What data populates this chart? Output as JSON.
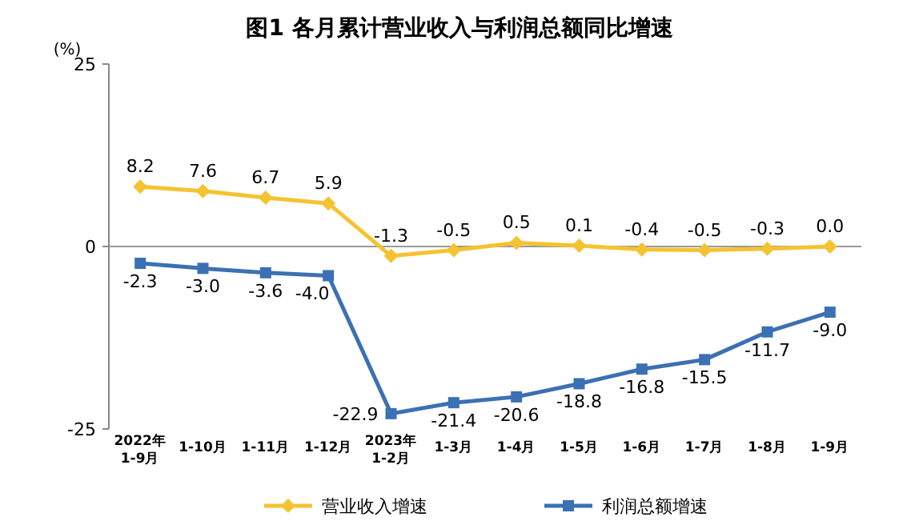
{
  "chart_data": {
    "type": "line",
    "title": "图1  各月累计营业收入与利润总额同比增速",
    "ylabel": "(%)",
    "categories": [
      "2022年\n1-9月",
      "1-10月",
      "1-11月",
      "1-12月",
      "2023年\n1-2月",
      "1-3月",
      "1-4月",
      "1-5月",
      "1-6月",
      "1-7月",
      "1-8月",
      "1-9月"
    ],
    "series": [
      {
        "name": "营业收入增速",
        "color": "#f5c230",
        "marker": "diamond",
        "values": [
          8.2,
          7.6,
          6.7,
          5.9,
          -1.3,
          -0.5,
          0.5,
          0.1,
          -0.4,
          -0.5,
          -0.3,
          0.0
        ],
        "value_labels": [
          "8.2",
          "7.6",
          "6.7",
          "5.9",
          "-1.3",
          "-0.5",
          "0.5",
          "0.1",
          "-0.4",
          "-0.5",
          "-0.3",
          "0.0"
        ]
      },
      {
        "name": "利润总额增速",
        "color": "#3c70b4",
        "marker": "square",
        "values": [
          -2.3,
          -3.0,
          -3.6,
          -4.0,
          -22.9,
          -21.4,
          -20.6,
          -18.8,
          -16.8,
          -15.5,
          -11.7,
          -9.0
        ],
        "value_labels": [
          "-2.3",
          "-3.0",
          "-3.6",
          "-4.0",
          "-22.9",
          "-21.4",
          "-20.6",
          "-18.8",
          "-16.8",
          "-15.5",
          "-11.7",
          "-9.0"
        ]
      }
    ],
    "ylim": [
      -25,
      25
    ],
    "yticks": [
      -25,
      0,
      25
    ],
    "legend": "bottom"
  }
}
